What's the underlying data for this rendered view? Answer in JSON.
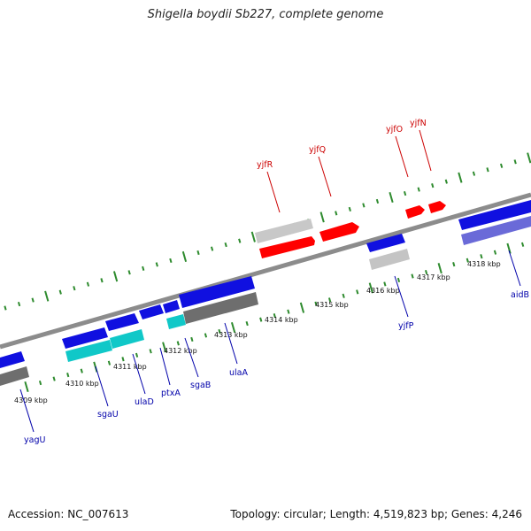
{
  "title": "Shigella boydii Sb227, complete genome",
  "footer": {
    "accession": "Accession: NC_007613",
    "summary": "Topology: circular; Length: 4,519,823 bp; Genes: 4,246"
  },
  "colors": {
    "background": "#ffffff",
    "backbone": "#8c8c8c",
    "ticks": "#2e8b2e",
    "forward_label": "#cc0000",
    "reverse_label": "#0000aa",
    "feature_red": "#ff0000",
    "feature_blue": "#1010e0",
    "feature_cyan": "#10c8c8",
    "feature_gray": "#c4c4c4",
    "feature_darkgray": "#6e6e6e",
    "feature_slate": "#6a6ad8"
  },
  "scale": {
    "unit": "kbp",
    "labels": [
      "4309 kbp",
      "4310 kbp",
      "4311 kbp",
      "4312 kbp",
      "4313 kbp",
      "4314 kbp",
      "4315 kbp",
      "4316 kbp",
      "4317 kbp",
      "4318 kbp"
    ]
  },
  "genes_forward": [
    {
      "name": "yjfR",
      "icon": "red-arrow"
    },
    {
      "name": "yjfQ",
      "icon": "red-arrow"
    },
    {
      "name": "yjfO",
      "icon": "red-arrow"
    },
    {
      "name": "yjfN",
      "icon": "red-arrow"
    }
  ],
  "genes_reverse": [
    {
      "name": "yagU",
      "icon": "blue-arrow"
    },
    {
      "name": "sgaU",
      "icon": "blue-arrow"
    },
    {
      "name": "ulaD",
      "icon": "blue-arrow"
    },
    {
      "name": "ptxA",
      "icon": "blue-arrow"
    },
    {
      "name": "sgaB",
      "icon": "blue-arrow"
    },
    {
      "name": "ulaA",
      "icon": "blue-arrow"
    },
    {
      "name": "yjfP",
      "icon": "blue-arrow"
    },
    {
      "name": "aidB",
      "icon": "blue-arrow"
    }
  ]
}
